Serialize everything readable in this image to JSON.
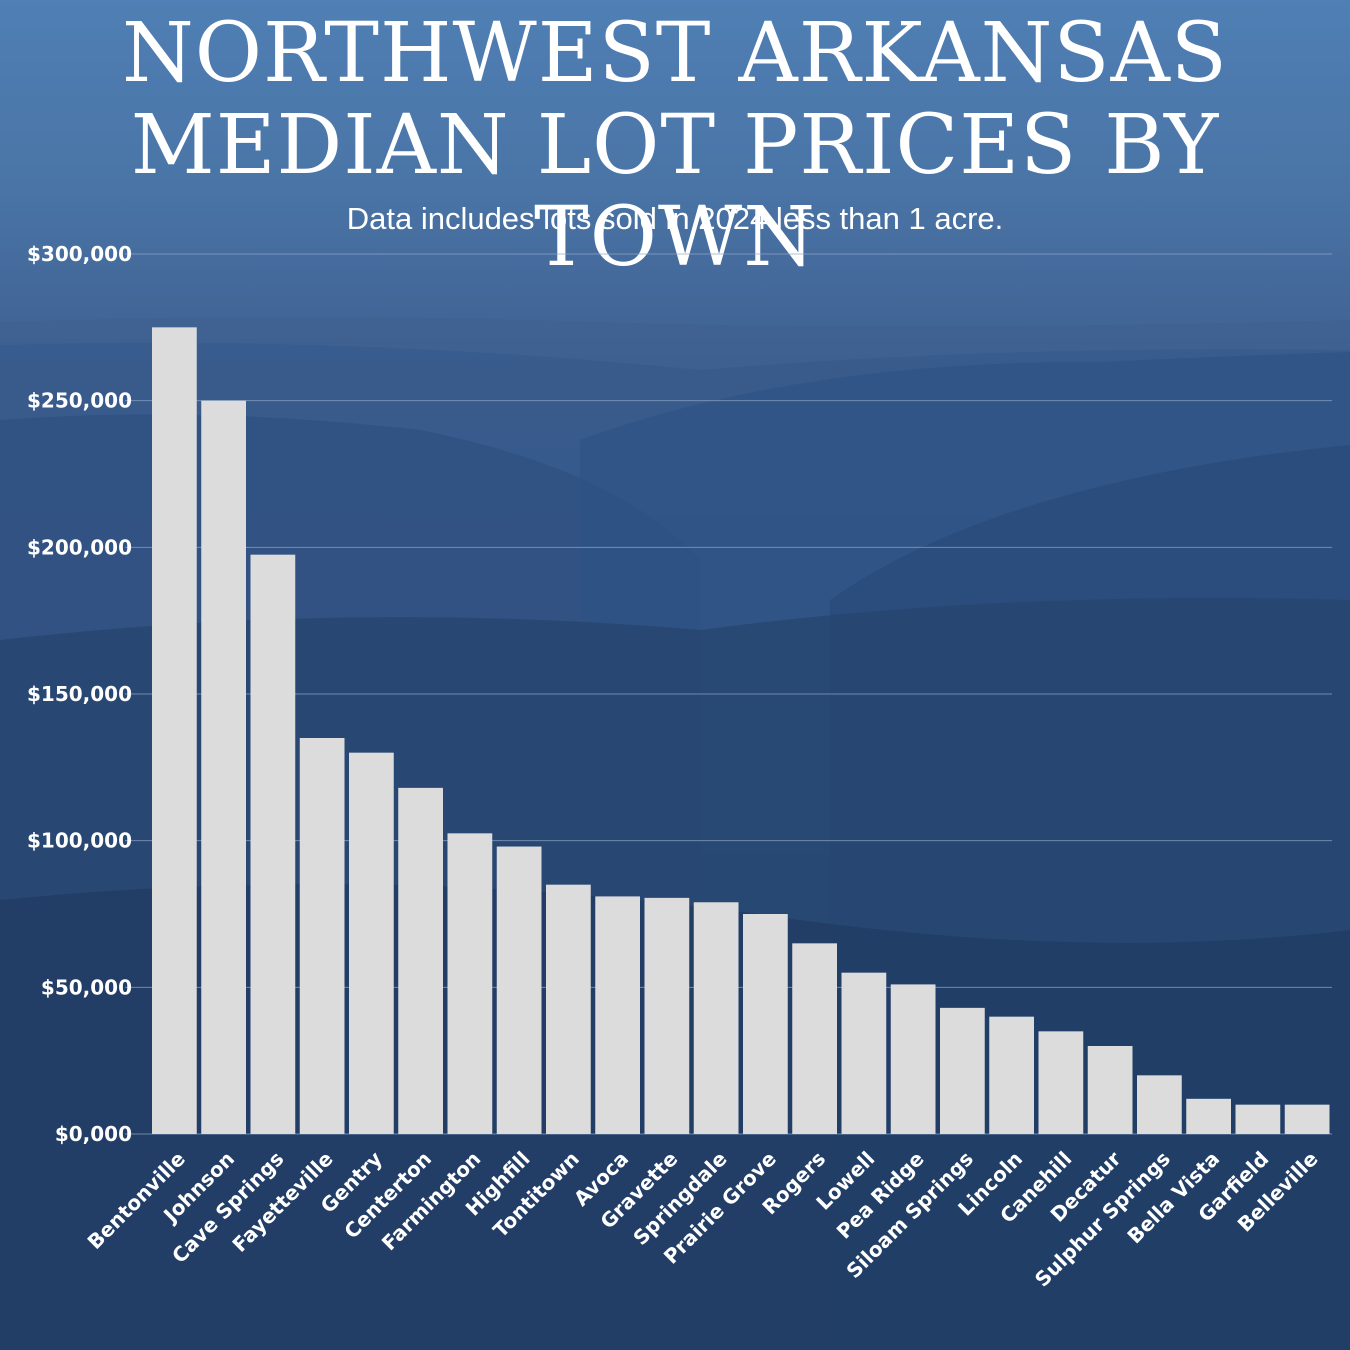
{
  "header": {
    "title_line1": "NORTHWEST ARKANSAS",
    "title_line2": "MEDIAN LOT PRICES BY TOWN",
    "subtitle": "Data includes lots sold in 2024 less than 1 acre."
  },
  "colors": {
    "bar": "#dcdcdc",
    "gridline": "#8fa6c4",
    "text": "#ffffff",
    "background": "#2c4c7e"
  },
  "chart_data": {
    "type": "bar",
    "title": "NORTHWEST ARKANSAS MEDIAN LOT PRICES BY TOWN",
    "subtitle": "Data includes lots sold in 2024 less than 1 acre.",
    "xlabel": "",
    "ylabel": "",
    "ylim": [
      0,
      300000
    ],
    "yticks": [
      0,
      50000,
      100000,
      150000,
      200000,
      250000,
      300000
    ],
    "ytick_labels": [
      "$0,000",
      "$50,000",
      "$100,000",
      "$150,000",
      "$200,000",
      "$250,000",
      "$300,000"
    ],
    "grid": true,
    "legend": "none",
    "categories": [
      "Bentonville",
      "Johnson",
      "Cave Springs",
      "Fayetteville",
      "Gentry",
      "Centerton",
      "Farmington",
      "Highfill",
      "Tontitown",
      "Avoca",
      "Gravette",
      "Springdale",
      "Prairie Grove",
      "Rogers",
      "Lowell",
      "Pea Ridge",
      "Siloam Springs",
      "Lincoln",
      "Canehill",
      "Decatur",
      "Sulphur Springs",
      "Bella Vista",
      "Garfield",
      "Belleville"
    ],
    "values": [
      275000,
      250000,
      197500,
      135000,
      130000,
      118000,
      102500,
      98000,
      85000,
      81000,
      80500,
      79000,
      75000,
      65000,
      55000,
      51000,
      43000,
      40000,
      35000,
      30000,
      20000,
      12000,
      10000,
      10000
    ]
  }
}
